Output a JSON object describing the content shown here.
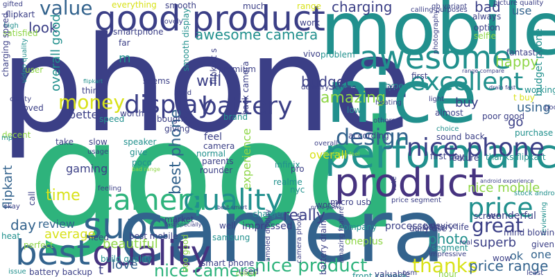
{
  "palette": {
    "navy": "#3b3f86",
    "blue": "#33638d",
    "teal": "#21908d",
    "green": "#2eb37c",
    "lime": "#8ed645",
    "yellow": "#d8e219",
    "purple": "#46337f"
  },
  "words": [
    {
      "id": "phone",
      "text": "phone",
      "c": "navy"
    },
    {
      "id": "good",
      "text": "good",
      "c": "green"
    },
    {
      "id": "mobile",
      "text": "mobile",
      "c": "teal"
    },
    {
      "id": "nice",
      "text": "nice",
      "c": "teal"
    },
    {
      "id": "camera",
      "text": "camera",
      "c": "blue"
    },
    {
      "id": "performance",
      "text": "performance",
      "c": "teal"
    },
    {
      "id": "good-product",
      "text": "good product",
      "c": "navy"
    },
    {
      "id": "awesome",
      "text": "awesome",
      "c": "teal"
    },
    {
      "id": "product",
      "text": "product",
      "c": "purple"
    },
    {
      "id": "super",
      "text": "super",
      "c": "blue"
    },
    {
      "id": "best",
      "text": "best",
      "c": "blue"
    },
    {
      "id": "quality-1",
      "text": "quality",
      "c": "purple"
    },
    {
      "id": "quality-2",
      "text": "quality",
      "c": "teal"
    },
    {
      "id": "nice-phone",
      "text": "nice phone",
      "c": "navy"
    },
    {
      "id": "excellent",
      "text": "excellent",
      "c": "teal"
    },
    {
      "id": "battery",
      "text": "battery",
      "c": "navy"
    },
    {
      "id": "display",
      "text": "display",
      "c": "navy"
    },
    {
      "id": "price",
      "text": "price",
      "c": "teal"
    },
    {
      "id": "money",
      "text": "money",
      "c": "yellow"
    },
    {
      "id": "design",
      "text": "design",
      "c": "blue"
    },
    {
      "id": "amazing",
      "text": "amazing",
      "c": "lime"
    },
    {
      "id": "camera-quality",
      "text": "camera",
      "c": "green"
    },
    {
      "id": "great",
      "text": "great",
      "c": "navy"
    },
    {
      "id": "nice-product",
      "text": "nice product",
      "c": "green"
    },
    {
      "id": "nice-camera",
      "text": "nice camera",
      "c": "green"
    },
    {
      "id": "thanks",
      "text": "thanks",
      "c": "yellow"
    },
    {
      "id": "value",
      "text": "value",
      "c": "blue"
    },
    {
      "id": "look",
      "text": "look",
      "c": "navy"
    },
    {
      "id": "charging",
      "text": "charging",
      "c": "navy"
    },
    {
      "id": "awesome-camera",
      "text": "awesome camera",
      "c": "teal"
    },
    {
      "id": "budget",
      "text": "budget",
      "c": "navy"
    },
    {
      "id": "happy",
      "text": "happy",
      "c": "lime"
    },
    {
      "id": "day",
      "text": "day",
      "c": "blue"
    },
    {
      "id": "review",
      "text": "review",
      "c": "blue"
    },
    {
      "id": "average",
      "text": "average",
      "c": "yellow"
    },
    {
      "id": "beautiful",
      "text": "beautiful",
      "c": "lime"
    },
    {
      "id": "love",
      "text": "love",
      "c": "blue"
    },
    {
      "id": "time",
      "text": "time",
      "c": "yellow"
    },
    {
      "id": "gaming",
      "text": "gaming",
      "c": "navy"
    },
    {
      "id": "flipkart",
      "text": "flipkart",
      "c": "blue"
    },
    {
      "id": "really",
      "text": "really",
      "c": "navy"
    },
    {
      "id": "nice-mobile",
      "text": "nice mobile",
      "c": "lime"
    },
    {
      "id": "price-range",
      "text": "price range",
      "c": "blue"
    },
    {
      "id": "superb",
      "text": "superb",
      "c": "navy"
    },
    {
      "id": "photo",
      "text": "photo",
      "c": "teal"
    },
    {
      "id": "ok",
      "text": "ok",
      "c": "blue"
    },
    {
      "id": "one",
      "text": "one",
      "c": "blue"
    },
    {
      "id": "buy",
      "text": "buy",
      "c": "navy"
    },
    {
      "id": "go",
      "text": "go",
      "c": "navy"
    },
    {
      "id": "using",
      "text": "using",
      "c": "blue"
    },
    {
      "id": "better",
      "text": "better",
      "c": "navy"
    },
    {
      "id": "best-phone",
      "text": "best phone",
      "c": "blue"
    },
    {
      "id": "overall",
      "text": "overall",
      "c": "yellow"
    },
    {
      "id": "overall-good",
      "text": "overall good",
      "c": "teal"
    },
    {
      "id": "experience",
      "text": "experience",
      "c": "lime"
    },
    {
      "id": "will",
      "text": "will",
      "c": "navy"
    },
    {
      "id": "bad",
      "text": "bad",
      "c": "navy"
    },
    {
      "id": "use",
      "text": "use",
      "c": "blue"
    },
    {
      "id": "everything",
      "text": "everything",
      "c": "yellow"
    },
    {
      "id": "smooth",
      "text": "smooth",
      "c": "navy"
    },
    {
      "id": "much",
      "text": "much",
      "c": "navy"
    },
    {
      "id": "range",
      "text": "range",
      "c": "yellow"
    },
    {
      "id": "gb-variant",
      "text": "gb variant",
      "c": "navy"
    },
    {
      "id": "picture-quality",
      "text": "picture quality",
      "c": "navy"
    },
    {
      "id": "flipkart-small",
      "text": "flipkart",
      "c": "navy"
    },
    {
      "id": "gifted",
      "text": "gifted",
      "c": "navy"
    },
    {
      "id": "high",
      "text": "high",
      "c": "teal"
    },
    {
      "id": "satisfied",
      "text": "satisfied",
      "c": "lime"
    },
    {
      "id": "charging-speed",
      "text": "charging speed",
      "c": "navy"
    },
    {
      "id": "video-quality",
      "text": "video quality",
      "c": "teal"
    },
    {
      "id": "user",
      "text": "user",
      "c": "lime"
    },
    {
      "id": "smartphone",
      "text": "smartphone",
      "c": "navy"
    },
    {
      "id": "far",
      "text": "far",
      "c": "navy"
    },
    {
      "id": "lovely",
      "text": "lovely",
      "c": "navy"
    },
    {
      "id": "smooth-display",
      "text": "smooth display",
      "c": "teal"
    },
    {
      "id": "flipkart-s",
      "text": "flipkart s",
      "c": "navy"
    },
    {
      "id": "premium",
      "text": "premium",
      "c": "navy"
    },
    {
      "id": "back-camera",
      "text": "back camera",
      "c": "navy"
    },
    {
      "id": "work",
      "text": "work",
      "c": "navy"
    },
    {
      "id": "vivo",
      "text": "vivo",
      "c": "navy"
    },
    {
      "id": "problem",
      "text": "problem",
      "c": "teal"
    },
    {
      "id": "calling-purposes",
      "text": "calling purposes",
      "c": "navy"
    },
    {
      "id": "always",
      "text": "always",
      "c": "navy"
    },
    {
      "id": "option",
      "text": "option",
      "c": "navy"
    },
    {
      "id": "selfie",
      "text": "selfie",
      "c": "lime"
    },
    {
      "id": "photography",
      "text": "photography",
      "c": "navy"
    },
    {
      "id": "fantastic",
      "text": "fantastic",
      "c": "navy"
    },
    {
      "id": "range-compare",
      "text": "range compare",
      "c": "navy"
    },
    {
      "id": "budget-phone",
      "text": "budget phone",
      "c": "teal"
    },
    {
      "id": "first",
      "text": "first",
      "c": "navy"
    },
    {
      "id": "type-c",
      "text": "type c",
      "c": "teal"
    },
    {
      "id": "its",
      "text": "its",
      "c": "navy"
    },
    {
      "id": "delivery-service",
      "text": "delivery service",
      "c": "navy"
    },
    {
      "id": "drain-fast",
      "text": "drain fast",
      "c": "navy"
    },
    {
      "id": "light",
      "text": "light",
      "c": "navy"
    },
    {
      "id": "working",
      "text": "working",
      "c": "teal"
    },
    {
      "id": "t-buy",
      "text": "t buy",
      "c": "yellow"
    },
    {
      "id": "poor",
      "text": "poor",
      "c": "navy"
    },
    {
      "id": "poor-good",
      "text": "poor good",
      "c": "navy"
    },
    {
      "id": "m",
      "text": "m",
      "c": "teal"
    },
    {
      "id": "seems",
      "text": "seems",
      "c": "navy"
    },
    {
      "id": "think",
      "text": "think",
      "c": "navy"
    },
    {
      "id": "hand",
      "text": "hand",
      "c": "navy"
    },
    {
      "id": "flipkart-tiny",
      "text": "flipkart",
      "c": "teal"
    },
    {
      "id": "clarity",
      "text": "clarity",
      "c": "navy"
    },
    {
      "id": "loved",
      "text": "loved",
      "c": "navy"
    },
    {
      "id": "worth",
      "text": "worth",
      "c": "navy"
    },
    {
      "id": "speed",
      "text": "speed",
      "c": "teal"
    },
    {
      "id": "bought",
      "text": "bought",
      "c": "navy"
    },
    {
      "id": "giving",
      "text": "giving",
      "c": "navy"
    },
    {
      "id": "brand",
      "text": "brand",
      "c": "teal"
    },
    {
      "id": "low",
      "text": "low",
      "c": "teal"
    },
    {
      "id": "heating",
      "text": "heating",
      "c": "navy"
    },
    {
      "id": "others",
      "text": "others",
      "c": "navy"
    },
    {
      "id": "according",
      "text": "according",
      "c": "navy"
    },
    {
      "id": "almost",
      "text": "almost",
      "c": "navy"
    },
    {
      "id": "choice",
      "text": "choice",
      "c": "teal"
    },
    {
      "id": "purchase",
      "text": "purchase",
      "c": "teal"
    },
    {
      "id": "sound",
      "text": "sound",
      "c": "navy"
    },
    {
      "id": "back",
      "text": "back",
      "c": "navy"
    },
    {
      "id": "decent",
      "text": "decent",
      "c": "lime"
    },
    {
      "id": "take",
      "text": "take",
      "c": "navy"
    },
    {
      "id": "slow",
      "text": "slow",
      "c": "navy"
    },
    {
      "id": "usage",
      "text": "usage",
      "c": "navy"
    },
    {
      "id": "speaker",
      "text": "speaker",
      "c": "teal"
    },
    {
      "id": "give",
      "text": "give",
      "c": "teal"
    },
    {
      "id": "poco",
      "text": "poco",
      "c": "teal"
    },
    {
      "id": "feel",
      "text": "feel",
      "c": "navy"
    },
    {
      "id": "camera-small",
      "text": "camera",
      "c": "navy"
    },
    {
      "id": "normal",
      "text": "normal",
      "c": "teal"
    },
    {
      "id": "parents",
      "text": "parents",
      "c": "navy"
    },
    {
      "id": "rounder",
      "text": "rounder",
      "c": "navy"
    },
    {
      "id": "infinix",
      "text": "infinix",
      "c": "teal"
    },
    {
      "id": "pro",
      "text": "pro",
      "c": "navy"
    },
    {
      "id": "overall-small",
      "text": "overall",
      "c": "navy"
    },
    {
      "id": "realme",
      "text": "realme",
      "c": "teal"
    },
    {
      "id": "nyc",
      "text": "nyc",
      "c": "teal"
    },
    {
      "id": "first-day",
      "text": "first day",
      "c": "navy"
    },
    {
      "id": "feature",
      "text": "feature",
      "c": "navy"
    },
    {
      "id": "thanks-flipkart",
      "text": "thanks flipkart",
      "c": "teal"
    },
    {
      "id": "android-experience",
      "text": "android experience",
      "c": "navy"
    },
    {
      "id": "stock-android",
      "text": "stock android",
      "c": "teal"
    },
    {
      "id": "call",
      "text": "call",
      "c": "navy"
    },
    {
      "id": "feeling",
      "text": "feeling",
      "c": "navy"
    },
    {
      "id": "okay",
      "text": "okay",
      "c": "navy"
    },
    {
      "id": "heat",
      "text": "heat",
      "c": "teal"
    },
    {
      "id": "mp",
      "text": "mp",
      "c": "teal"
    },
    {
      "id": "perfect",
      "text": "perfect",
      "c": "lime"
    },
    {
      "id": "best-smart",
      "text": "best smart",
      "c": "navy"
    },
    {
      "id": "micro-usb",
      "text": "micro usb",
      "c": "navy"
    },
    {
      "id": "charger",
      "text": "charger",
      "c": "teal"
    },
    {
      "id": "worst",
      "text": "worst",
      "c": "navy"
    },
    {
      "id": "rate",
      "text": "rate",
      "c": "navy"
    },
    {
      "id": "price-segment",
      "text": "price segment",
      "c": "navy"
    },
    {
      "id": "processor",
      "text": "processor",
      "c": "navy"
    },
    {
      "id": "battery-life",
      "text": "battery life",
      "c": "navy"
    },
    {
      "id": "company",
      "text": "company",
      "c": "teal"
    },
    {
      "id": "screen",
      "text": "screen",
      "c": "navy"
    },
    {
      "id": "wonderful",
      "text": "wonderful",
      "c": "navy"
    },
    {
      "id": "reviewing",
      "text": "reviewing",
      "c": "teal"
    },
    {
      "id": "mind-blowing",
      "text": "mind blowing",
      "c": "navy"
    },
    {
      "id": "given",
      "text": "given",
      "c": "navy"
    },
    {
      "id": "market",
      "text": "market",
      "c": "navy"
    },
    {
      "id": "fast-specially",
      "text": "fast specially",
      "c": "navy"
    },
    {
      "id": "need",
      "text": "need",
      "c": "navy"
    },
    {
      "id": "best-mobile",
      "text": "best mobile",
      "c": "navy"
    },
    {
      "id": "impressed",
      "text": "impressed",
      "c": "navy"
    },
    {
      "id": "well",
      "text": "well",
      "c": "navy"
    },
    {
      "id": "samsung",
      "text": "samsung",
      "c": "teal"
    },
    {
      "id": "amoled-display",
      "text": "amoled display",
      "c": "navy"
    },
    {
      "id": "camera-phone",
      "text": "camera phone",
      "c": "navy"
    },
    {
      "id": "amazing-feature",
      "text": "amazing feature",
      "c": "navy"
    },
    {
      "id": "battery-drain",
      "text": "battery drain",
      "c": "navy"
    },
    {
      "id": "oneplus",
      "text": "oneplus",
      "c": "lime"
    },
    {
      "id": "daily-use",
      "text": "daily use",
      "c": "navy"
    },
    {
      "id": "device",
      "text": "device",
      "c": "navy"
    },
    {
      "id": "segment",
      "text": "segment",
      "c": "teal"
    },
    {
      "id": "impressive",
      "text": "impressive",
      "c": "navy"
    },
    {
      "id": "real",
      "text": "real",
      "c": "navy"
    },
    {
      "id": "wow",
      "text": "wow",
      "c": "navy"
    },
    {
      "id": "least",
      "text": "least",
      "c": "navy"
    },
    {
      "id": "battery-backup",
      "text": "battery backup",
      "c": "navy"
    },
    {
      "id": "t-small",
      "text": "t",
      "c": "navy"
    },
    {
      "id": "build-quality",
      "text": "build quality",
      "c": "teal"
    },
    {
      "id": "soo-good",
      "text": "soo good",
      "c": "lime"
    },
    {
      "id": "used",
      "text": "used",
      "c": "navy"
    },
    {
      "id": "smart-phone",
      "text": "smart phone",
      "c": "navy"
    },
    {
      "id": "colour",
      "text": "colour",
      "c": "lime"
    },
    {
      "id": "front-camera",
      "text": "front camera",
      "c": "teal"
    },
    {
      "id": "osm",
      "text": "osm",
      "c": "navy"
    },
    {
      "id": "valuable",
      "text": "valuable",
      "c": "navy"
    },
    {
      "id": "hour",
      "text": "hour",
      "c": "lime"
    },
    {
      "id": "issue",
      "text": "issue",
      "c": "teal"
    },
    {
      "id": "price-point",
      "text": "price point",
      "c": "navy"
    },
    {
      "id": "touching-feel",
      "text": "touching feel",
      "c": "lime"
    },
    {
      "id": "bad-range",
      "text": "bad range",
      "c": "lime"
    }
  ]
}
